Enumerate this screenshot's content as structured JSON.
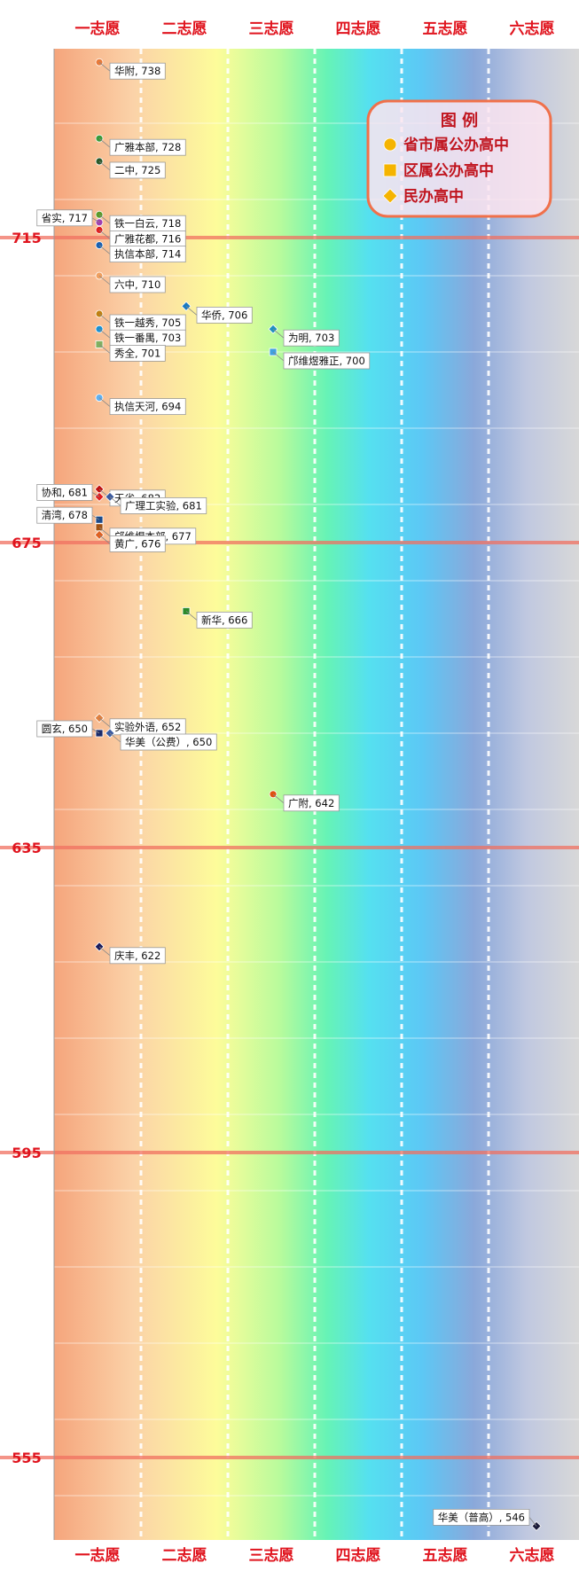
{
  "chart_data": {
    "type": "scatter",
    "columns": [
      "一志愿",
      "二志愿",
      "三志愿",
      "四志愿",
      "五志愿",
      "六志愿"
    ],
    "ylim": [
      543,
      743
    ],
    "yticks": [
      715,
      675,
      635,
      595,
      555
    ],
    "legend": {
      "title": "图  例",
      "items": [
        {
          "shape": "circle",
          "label": "省市属公办高中",
          "color": "#f5b400"
        },
        {
          "shape": "square",
          "label": "区属公办高中",
          "color": "#f5b400"
        },
        {
          "shape": "diamond",
          "label": "民办高中",
          "color": "#f5b400"
        }
      ]
    },
    "points": [
      {
        "name": "华附",
        "score": 738,
        "col": 1,
        "shape": "circle",
        "color": "#e87a3a",
        "side": "right"
      },
      {
        "name": "广雅本部",
        "score": 728,
        "col": 1,
        "shape": "circle",
        "color": "#3a9a3a",
        "side": "right"
      },
      {
        "name": "二中",
        "score": 725,
        "col": 1,
        "shape": "circle",
        "color": "#2a5a2a",
        "side": "right"
      },
      {
        "name": "铁一白云",
        "score": 718,
        "col": 1,
        "shape": "circle",
        "color": "#5a9a2a",
        "side": "right"
      },
      {
        "name": "省实",
        "score": 717,
        "col": 1,
        "shape": "circle",
        "color": "#a040b0",
        "side": "left"
      },
      {
        "name": "广雅花都",
        "score": 716,
        "col": 1,
        "shape": "circle",
        "color": "#e02020",
        "side": "right"
      },
      {
        "name": "执信本部",
        "score": 714,
        "col": 1,
        "shape": "circle",
        "color": "#1a60b0",
        "side": "right"
      },
      {
        "name": "六中",
        "score": 710,
        "col": 1,
        "shape": "circle",
        "color": "#f0a060",
        "side": "right"
      },
      {
        "name": "华侨",
        "score": 706,
        "col": 2,
        "shape": "diamond",
        "color": "#1a7ac0",
        "side": "right"
      },
      {
        "name": "铁一越秀",
        "score": 705,
        "col": 1,
        "shape": "circle",
        "color": "#c08010",
        "side": "right"
      },
      {
        "name": "为明",
        "score": 703,
        "col": 3,
        "shape": "diamond",
        "color": "#2090c0",
        "side": "right"
      },
      {
        "name": "铁一番禺",
        "score": 703,
        "col": 1,
        "shape": "circle",
        "color": "#1a90d0",
        "side": "right"
      },
      {
        "name": "秀全",
        "score": 701,
        "col": 1,
        "shape": "square",
        "color": "#80b060",
        "side": "right"
      },
      {
        "name": "邝维煜雅正",
        "score": 700,
        "col": 3,
        "shape": "square",
        "color": "#40a0e0",
        "side": "right"
      },
      {
        "name": "执信天河",
        "score": 694,
        "col": 1,
        "shape": "circle",
        "color": "#60b0f0",
        "side": "right"
      },
      {
        "name": "天省",
        "score": 682,
        "col": 1,
        "shape": "diamond",
        "color": "#c01010",
        "side": "right"
      },
      {
        "name": "协和",
        "score": 681,
        "col": 1,
        "shape": "diamond",
        "color": "#e02020",
        "side": "left"
      },
      {
        "name": "广理工实验",
        "score": 681,
        "col": 1,
        "shape": "diamond",
        "color": "#3a5aa0",
        "side": "right",
        "dx": 12
      },
      {
        "name": "清湾",
        "score": 678,
        "col": 1,
        "shape": "square",
        "color": "#1a4a8a",
        "side": "left"
      },
      {
        "name": "邝维煜本部",
        "score": 677,
        "col": 1,
        "shape": "square",
        "color": "#a05010",
        "side": "right"
      },
      {
        "name": "黄广",
        "score": 676,
        "col": 1,
        "shape": "diamond",
        "color": "#e06020",
        "side": "right"
      },
      {
        "name": "新华",
        "score": 666,
        "col": 2,
        "shape": "square",
        "color": "#2a8a2a",
        "side": "right"
      },
      {
        "name": "实验外语",
        "score": 652,
        "col": 1,
        "shape": "diamond",
        "color": "#e08040",
        "side": "right"
      },
      {
        "name": "圆玄",
        "score": 650,
        "col": 1,
        "shape": "square",
        "color": "#1a2a6a",
        "side": "left"
      },
      {
        "name": "华美（公费）",
        "score": 650,
        "col": 1,
        "shape": "diamond",
        "color": "#3a5aa0",
        "side": "right",
        "dx": 12
      },
      {
        "name": "广附",
        "score": 642,
        "col": 3,
        "shape": "circle",
        "color": "#e05010",
        "side": "right"
      },
      {
        "name": "庆丰",
        "score": 622,
        "col": 1,
        "shape": "diamond",
        "color": "#1a1a5a",
        "side": "right"
      },
      {
        "name": "华美（普高）",
        "score": 546,
        "col": 6,
        "shape": "diamond",
        "color": "#1a1a3a",
        "side": "left"
      }
    ]
  }
}
